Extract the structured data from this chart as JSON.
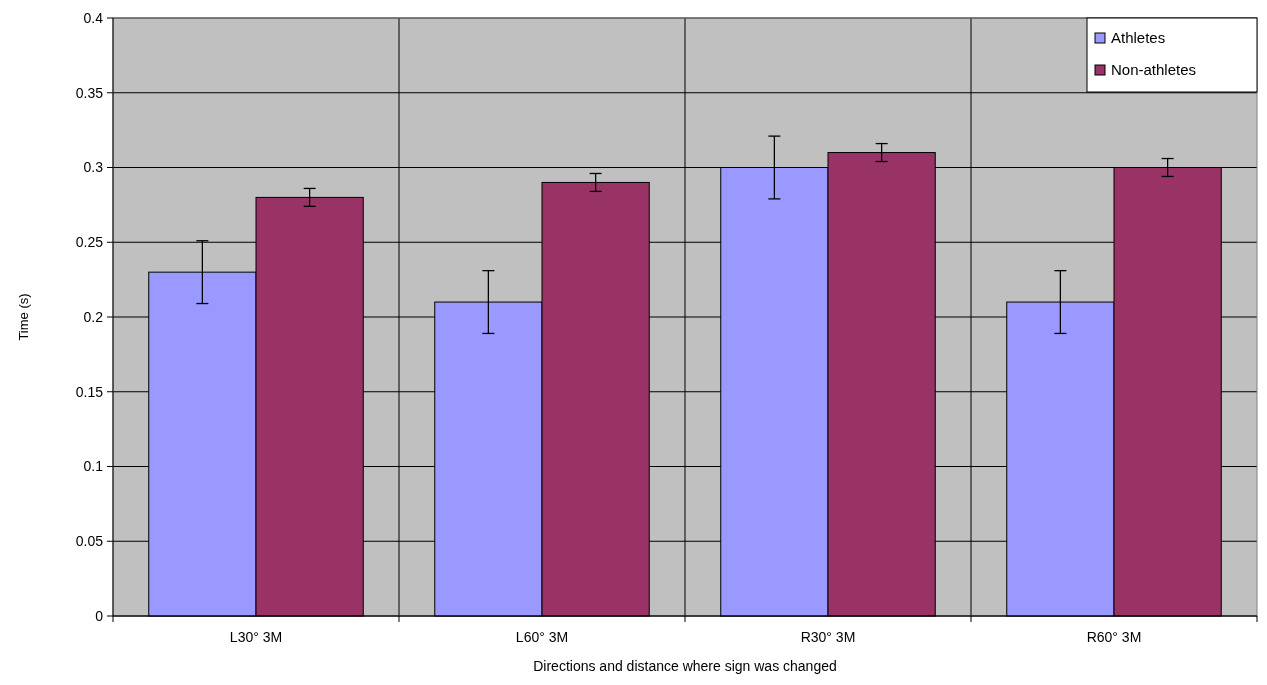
{
  "chart_data": {
    "type": "bar",
    "xlabel": "Directions and distance where sign was changed",
    "ylabel": "Time (s)",
    "categories": [
      "L30° 3M",
      "L60° 3M",
      "R30° 3M",
      "R60° 3M"
    ],
    "series": [
      {
        "name": "Athletes",
        "color": "#9999ff",
        "values": [
          0.23,
          0.21,
          0.3,
          0.21
        ],
        "errors": [
          0.021,
          0.021,
          0.021,
          0.021
        ]
      },
      {
        "name": "Non-athletes",
        "color": "#993366",
        "values": [
          0.28,
          0.29,
          0.31,
          0.3
        ],
        "errors": [
          0.006,
          0.006,
          0.006,
          0.006
        ]
      }
    ],
    "ylim": [
      0,
      0.4
    ],
    "yticks": [
      0,
      0.05,
      0.1,
      0.15,
      0.2,
      0.25,
      0.3,
      0.35,
      0.4
    ],
    "grid": true,
    "legend": "top right"
  }
}
